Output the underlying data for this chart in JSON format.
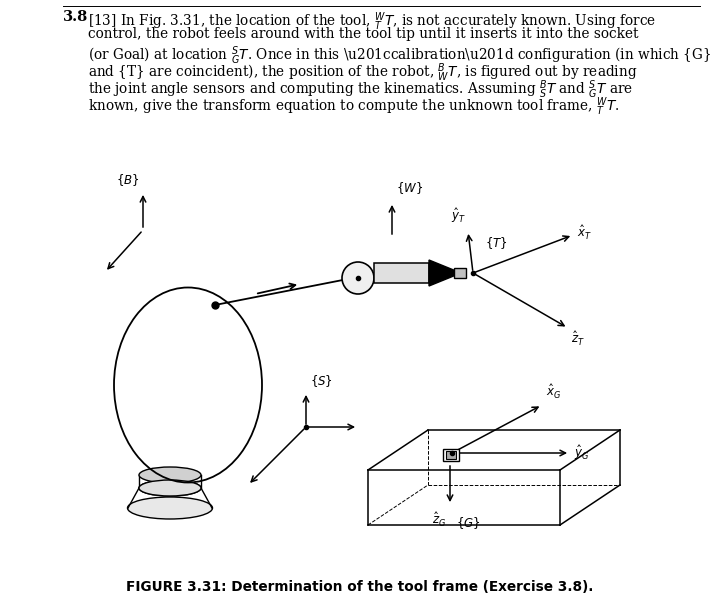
{
  "bg_color": "#ffffff",
  "fig_width": 7.2,
  "fig_height": 5.98,
  "caption": "FIGURE 3.31: Determination of the tool frame (Exercise 3.8)."
}
